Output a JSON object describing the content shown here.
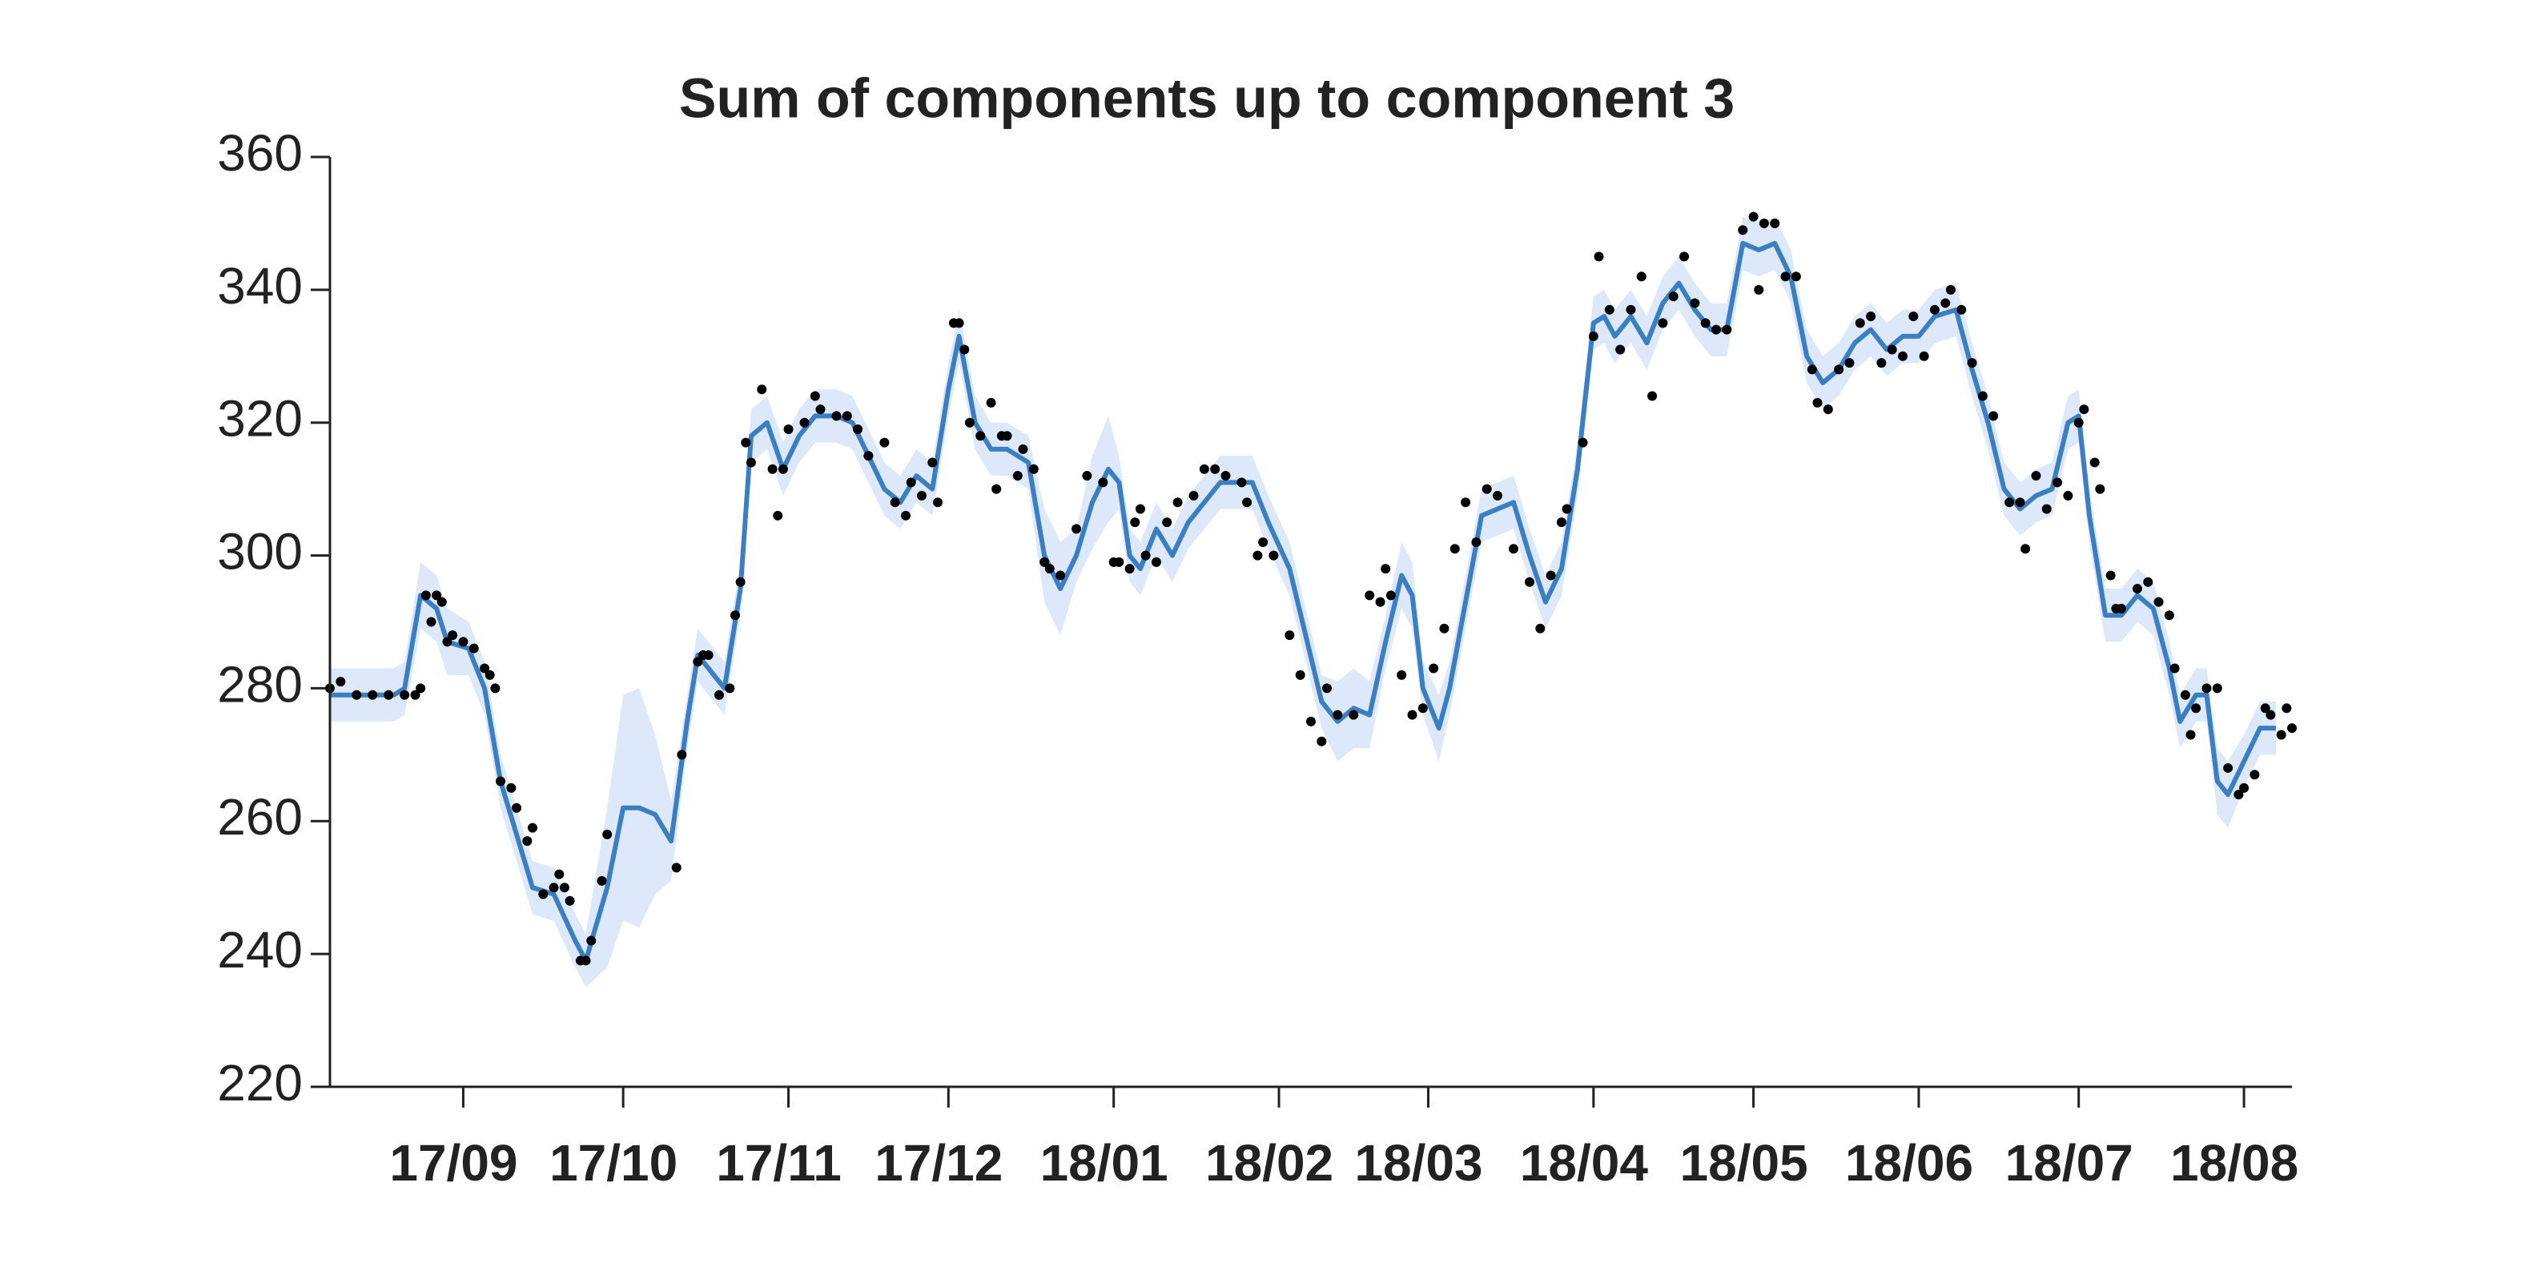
{
  "chart_data": {
    "type": "line",
    "title": "Sum of components up to component 3",
    "color": "#3a7fc1",
    "band_color": "#dde8fb",
    "point_color": "#000000",
    "x": [
      -25,
      -13,
      -11,
      -8,
      -5,
      -3,
      1,
      4,
      7,
      10,
      13,
      17,
      21,
      23,
      27,
      30,
      33,
      36,
      39,
      42,
      44,
      46,
      49,
      52,
      54,
      57,
      60,
      63,
      66,
      70,
      73,
      76,
      79,
      82,
      85,
      88,
      91,
      93,
      96,
      99,
      102,
      106,
      109,
      112,
      115,
      118,
      121,
      123,
      125,
      127,
      130,
      133,
      136,
      139,
      142,
      145,
      148,
      151,
      155,
      158,
      161,
      164,
      167,
      170,
      173,
      176,
      178,
      180,
      183,
      185,
      188,
      191,
      194,
      197,
      200,
      203,
      206,
      209,
      212,
      214,
      216,
      219,
      222,
      225,
      228,
      231,
      234,
      237,
      240,
      243,
      246,
      249,
      252,
      255,
      258,
      261,
      264,
      267,
      270,
      273,
      276,
      280,
      283,
      286,
      289,
      292,
      295,
      298,
      301,
      303,
      305,
      308,
      311,
      314,
      317,
      320,
      322,
      325,
      327,
      329,
      331,
      334,
      337,
      340
    ],
    "values": [
      279,
      279,
      280,
      294,
      292,
      287,
      286,
      280,
      266,
      258,
      250,
      249,
      242,
      239,
      250,
      262,
      262,
      261,
      257,
      275,
      285,
      283,
      280,
      295,
      318,
      320,
      313,
      318,
      321,
      321,
      320,
      315,
      310,
      308,
      312,
      310,
      325,
      333,
      320,
      316,
      316,
      314,
      300,
      295,
      300,
      308,
      313,
      311,
      300,
      298,
      304,
      300,
      305,
      308,
      311,
      311,
      311,
      305,
      298,
      288,
      278,
      275,
      277,
      276,
      287,
      297,
      294,
      280,
      274,
      280,
      293,
      306,
      307,
      308,
      300,
      293,
      298,
      313,
      335,
      336,
      333,
      336,
      332,
      338,
      341,
      337,
      334,
      334,
      347,
      346,
      347,
      342,
      330,
      326,
      328,
      332,
      334,
      331,
      333,
      333,
      336,
      337,
      328,
      320,
      310,
      307,
      309,
      310,
      320,
      321,
      306,
      291,
      291,
      294,
      292,
      283,
      275,
      279,
      279,
      266,
      264,
      269,
      274,
      274
    ],
    "errors": [
      4,
      4,
      4,
      5,
      5,
      5,
      4,
      4,
      4,
      4,
      4,
      4,
      4,
      4,
      12,
      17,
      18,
      12,
      6,
      4,
      4,
      4,
      4,
      4,
      4,
      4,
      4,
      4,
      4,
      4,
      4,
      4,
      4,
      4,
      4,
      4,
      4,
      4,
      4,
      4,
      4,
      4,
      7,
      7,
      4,
      7,
      8,
      4,
      4,
      4,
      4,
      4,
      4,
      4,
      4,
      4,
      4,
      4,
      4,
      4,
      4,
      6,
      6,
      5,
      4,
      5,
      5,
      4,
      5,
      4,
      4,
      4,
      4,
      4,
      4,
      4,
      4,
      4,
      4,
      4,
      4,
      4,
      4,
      4,
      4,
      4,
      4,
      4,
      4,
      4,
      4,
      4,
      4,
      4,
      4,
      4,
      4,
      4,
      4,
      4,
      4,
      4,
      4,
      4,
      4,
      4,
      4,
      4,
      4,
      4,
      4,
      4,
      4,
      4,
      4,
      4,
      4,
      4,
      4,
      5,
      5,
      4,
      4,
      4
    ],
    "points": [
      {
        "x": -25,
        "y": 280
      },
      {
        "x": -23,
        "y": 281
      },
      {
        "x": -20,
        "y": 279
      },
      {
        "x": -17,
        "y": 279
      },
      {
        "x": -14,
        "y": 279
      },
      {
        "x": -11,
        "y": 279
      },
      {
        "x": -9,
        "y": 279
      },
      {
        "x": -8,
        "y": 280
      },
      {
        "x": -7,
        "y": 294
      },
      {
        "x": -6,
        "y": 290
      },
      {
        "x": -5,
        "y": 294
      },
      {
        "x": -4,
        "y": 293
      },
      {
        "x": -3,
        "y": 287
      },
      {
        "x": -2,
        "y": 288
      },
      {
        "x": 0,
        "y": 287
      },
      {
        "x": 2,
        "y": 286
      },
      {
        "x": 4,
        "y": 283
      },
      {
        "x": 5,
        "y": 282
      },
      {
        "x": 6,
        "y": 280
      },
      {
        "x": 7,
        "y": 266
      },
      {
        "x": 9,
        "y": 265
      },
      {
        "x": 10,
        "y": 262
      },
      {
        "x": 12,
        "y": 257
      },
      {
        "x": 13,
        "y": 259
      },
      {
        "x": 15,
        "y": 249
      },
      {
        "x": 17,
        "y": 250
      },
      {
        "x": 18,
        "y": 252
      },
      {
        "x": 19,
        "y": 250
      },
      {
        "x": 20,
        "y": 248
      },
      {
        "x": 22,
        "y": 239
      },
      {
        "x": 23,
        "y": 239
      },
      {
        "x": 24,
        "y": 242
      },
      {
        "x": 26,
        "y": 251
      },
      {
        "x": 27,
        "y": 258
      },
      {
        "x": 40,
        "y": 253
      },
      {
        "x": 41,
        "y": 270
      },
      {
        "x": 44,
        "y": 284
      },
      {
        "x": 45,
        "y": 285
      },
      {
        "x": 46,
        "y": 285
      },
      {
        "x": 48,
        "y": 279
      },
      {
        "x": 50,
        "y": 280
      },
      {
        "x": 51,
        "y": 291
      },
      {
        "x": 52,
        "y": 296
      },
      {
        "x": 53,
        "y": 317
      },
      {
        "x": 54,
        "y": 314
      },
      {
        "x": 56,
        "y": 325
      },
      {
        "x": 58,
        "y": 313
      },
      {
        "x": 59,
        "y": 306
      },
      {
        "x": 60,
        "y": 313
      },
      {
        "x": 61,
        "y": 319
      },
      {
        "x": 64,
        "y": 320
      },
      {
        "x": 66,
        "y": 324
      },
      {
        "x": 67,
        "y": 322
      },
      {
        "x": 70,
        "y": 321
      },
      {
        "x": 72,
        "y": 321
      },
      {
        "x": 74,
        "y": 319
      },
      {
        "x": 76,
        "y": 315
      },
      {
        "x": 79,
        "y": 317
      },
      {
        "x": 81,
        "y": 308
      },
      {
        "x": 83,
        "y": 306
      },
      {
        "x": 84,
        "y": 311
      },
      {
        "x": 86,
        "y": 309
      },
      {
        "x": 88,
        "y": 314
      },
      {
        "x": 89,
        "y": 308
      },
      {
        "x": 92,
        "y": 335
      },
      {
        "x": 93,
        "y": 335
      },
      {
        "x": 94,
        "y": 331
      },
      {
        "x": 95,
        "y": 320
      },
      {
        "x": 97,
        "y": 318
      },
      {
        "x": 99,
        "y": 323
      },
      {
        "x": 100,
        "y": 310
      },
      {
        "x": 101,
        "y": 318
      },
      {
        "x": 102,
        "y": 318
      },
      {
        "x": 104,
        "y": 312
      },
      {
        "x": 105,
        "y": 316
      },
      {
        "x": 107,
        "y": 313
      },
      {
        "x": 109,
        "y": 299
      },
      {
        "x": 110,
        "y": 298
      },
      {
        "x": 112,
        "y": 297
      },
      {
        "x": 115,
        "y": 304
      },
      {
        "x": 117,
        "y": 312
      },
      {
        "x": 120,
        "y": 311
      },
      {
        "x": 122,
        "y": 299
      },
      {
        "x": 123,
        "y": 299
      },
      {
        "x": 125,
        "y": 298
      },
      {
        "x": 126,
        "y": 305
      },
      {
        "x": 127,
        "y": 307
      },
      {
        "x": 128,
        "y": 300
      },
      {
        "x": 130,
        "y": 299
      },
      {
        "x": 132,
        "y": 305
      },
      {
        "x": 134,
        "y": 308
      },
      {
        "x": 137,
        "y": 309
      },
      {
        "x": 139,
        "y": 313
      },
      {
        "x": 141,
        "y": 313
      },
      {
        "x": 143,
        "y": 312
      },
      {
        "x": 146,
        "y": 311
      },
      {
        "x": 147,
        "y": 308
      },
      {
        "x": 149,
        "y": 300
      },
      {
        "x": 150,
        "y": 302
      },
      {
        "x": 152,
        "y": 300
      },
      {
        "x": 155,
        "y": 288
      },
      {
        "x": 157,
        "y": 282
      },
      {
        "x": 159,
        "y": 275
      },
      {
        "x": 161,
        "y": 272
      },
      {
        "x": 162,
        "y": 280
      },
      {
        "x": 164,
        "y": 276
      },
      {
        "x": 167,
        "y": 276
      },
      {
        "x": 170,
        "y": 294
      },
      {
        "x": 172,
        "y": 293
      },
      {
        "x": 173,
        "y": 298
      },
      {
        "x": 174,
        "y": 294
      },
      {
        "x": 176,
        "y": 282
      },
      {
        "x": 178,
        "y": 276
      },
      {
        "x": 180,
        "y": 277
      },
      {
        "x": 182,
        "y": 283
      },
      {
        "x": 184,
        "y": 289
      },
      {
        "x": 186,
        "y": 301
      },
      {
        "x": 188,
        "y": 308
      },
      {
        "x": 190,
        "y": 302
      },
      {
        "x": 192,
        "y": 310
      },
      {
        "x": 194,
        "y": 309
      },
      {
        "x": 197,
        "y": 301
      },
      {
        "x": 200,
        "y": 296
      },
      {
        "x": 202,
        "y": 289
      },
      {
        "x": 204,
        "y": 297
      },
      {
        "x": 206,
        "y": 305
      },
      {
        "x": 207,
        "y": 307
      },
      {
        "x": 210,
        "y": 317
      },
      {
        "x": 212,
        "y": 333
      },
      {
        "x": 213,
        "y": 345
      },
      {
        "x": 215,
        "y": 337
      },
      {
        "x": 217,
        "y": 331
      },
      {
        "x": 219,
        "y": 337
      },
      {
        "x": 221,
        "y": 342
      },
      {
        "x": 223,
        "y": 324
      },
      {
        "x": 225,
        "y": 335
      },
      {
        "x": 227,
        "y": 339
      },
      {
        "x": 229,
        "y": 345
      },
      {
        "x": 231,
        "y": 338
      },
      {
        "x": 233,
        "y": 335
      },
      {
        "x": 235,
        "y": 334
      },
      {
        "x": 237,
        "y": 334
      },
      {
        "x": 240,
        "y": 349
      },
      {
        "x": 242,
        "y": 351
      },
      {
        "x": 243,
        "y": 340
      },
      {
        "x": 244,
        "y": 350
      },
      {
        "x": 246,
        "y": 350
      },
      {
        "x": 248,
        "y": 342
      },
      {
        "x": 250,
        "y": 342
      },
      {
        "x": 253,
        "y": 328
      },
      {
        "x": 254,
        "y": 323
      },
      {
        "x": 256,
        "y": 322
      },
      {
        "x": 258,
        "y": 328
      },
      {
        "x": 260,
        "y": 329
      },
      {
        "x": 262,
        "y": 335
      },
      {
        "x": 264,
        "y": 336
      },
      {
        "x": 266,
        "y": 329
      },
      {
        "x": 268,
        "y": 331
      },
      {
        "x": 270,
        "y": 330
      },
      {
        "x": 272,
        "y": 336
      },
      {
        "x": 274,
        "y": 330
      },
      {
        "x": 276,
        "y": 337
      },
      {
        "x": 278,
        "y": 338
      },
      {
        "x": 279,
        "y": 340
      },
      {
        "x": 281,
        "y": 337
      },
      {
        "x": 283,
        "y": 329
      },
      {
        "x": 285,
        "y": 324
      },
      {
        "x": 287,
        "y": 321
      },
      {
        "x": 290,
        "y": 308
      },
      {
        "x": 292,
        "y": 308
      },
      {
        "x": 293,
        "y": 301
      },
      {
        "x": 295,
        "y": 312
      },
      {
        "x": 297,
        "y": 307
      },
      {
        "x": 299,
        "y": 311
      },
      {
        "x": 301,
        "y": 309
      },
      {
        "x": 303,
        "y": 320
      },
      {
        "x": 304,
        "y": 322
      },
      {
        "x": 306,
        "y": 314
      },
      {
        "x": 307,
        "y": 310
      },
      {
        "x": 309,
        "y": 297
      },
      {
        "x": 310,
        "y": 292
      },
      {
        "x": 311,
        "y": 292
      },
      {
        "x": 314,
        "y": 295
      },
      {
        "x": 316,
        "y": 296
      },
      {
        "x": 318,
        "y": 293
      },
      {
        "x": 320,
        "y": 291
      },
      {
        "x": 321,
        "y": 283
      },
      {
        "x": 323,
        "y": 279
      },
      {
        "x": 324,
        "y": 273
      },
      {
        "x": 325,
        "y": 277
      },
      {
        "x": 327,
        "y": 280
      },
      {
        "x": 329,
        "y": 280
      },
      {
        "x": 331,
        "y": 268
      },
      {
        "x": 333,
        "y": 264
      },
      {
        "x": 334,
        "y": 265
      },
      {
        "x": 336,
        "y": 267
      },
      {
        "x": 338,
        "y": 277
      },
      {
        "x": 339,
        "y": 276
      },
      {
        "x": 341,
        "y": 273
      },
      {
        "x": 342,
        "y": 277
      },
      {
        "x": 343,
        "y": 274
      }
    ],
    "xlim": [
      -25,
      343
    ],
    "xticks": [
      {
        "value": 0,
        "label": "17/09"
      },
      {
        "value": 30,
        "label": "17/10"
      },
      {
        "value": 61,
        "label": "17/11"
      },
      {
        "value": 91,
        "label": "17/12"
      },
      {
        "value": 122,
        "label": "18/01"
      },
      {
        "value": 153,
        "label": "18/02"
      },
      {
        "value": 181,
        "label": "18/03"
      },
      {
        "value": 212,
        "label": "18/04"
      },
      {
        "value": 242,
        "label": "18/05"
      },
      {
        "value": 273,
        "label": "18/06"
      },
      {
        "value": 303,
        "label": "18/07"
      },
      {
        "value": 334,
        "label": "18/08"
      }
    ],
    "ylim": [
      220,
      360
    ],
    "yticks": [
      220,
      240,
      260,
      280,
      300,
      320,
      340,
      360
    ]
  }
}
